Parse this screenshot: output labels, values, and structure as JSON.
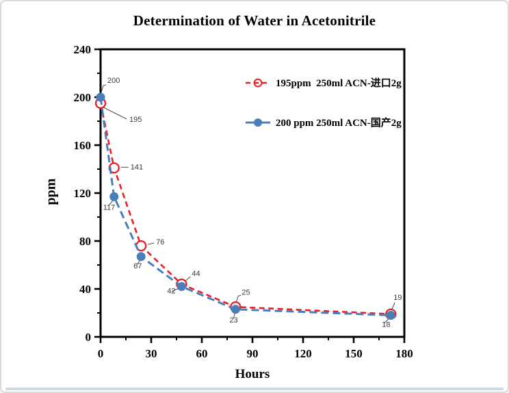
{
  "window": {
    "background": "#ffffff",
    "border_color": "#d9d9d9",
    "bottom_strip_color": "#d0d9e3"
  },
  "chart_data": {
    "type": "line",
    "title": "Determination of Water in Acetonitrile",
    "xlabel": "Hours",
    "ylabel": "ppm",
    "xlim": [
      0,
      180
    ],
    "ylim": [
      0,
      240
    ],
    "x_major_ticks": [
      0,
      30,
      60,
      90,
      120,
      150,
      180
    ],
    "x_minor_step": 15,
    "y_major_ticks": [
      0,
      40,
      80,
      120,
      160,
      200,
      240
    ],
    "y_minor_step": 20,
    "grid": false,
    "legend_position": "inside-top-center",
    "axis_color": "#000000",
    "data_label_color": "#3a3a3a",
    "series": [
      {
        "name": "195ppm  250ml ACN-进口2g",
        "color": "#ed1c24",
        "line_style": "dashed",
        "marker": "open-circle",
        "x": [
          0,
          8,
          24,
          48,
          80,
          172
        ],
        "y": [
          195,
          141,
          76,
          44,
          25,
          19
        ],
        "point_labels": [
          "195",
          "141",
          "76",
          "44",
          "25",
          "19"
        ]
      },
      {
        "name": "200 ppm 250ml ACN-国产2g",
        "color": "#4a7ebb",
        "line_style": "dashed",
        "marker": "filled-circle",
        "x": [
          0,
          8,
          24,
          48,
          80,
          172
        ],
        "y": [
          200,
          117,
          67,
          42,
          23,
          18
        ],
        "point_labels": [
          "200",
          "117",
          "67",
          "42",
          "23",
          "18"
        ]
      }
    ]
  }
}
